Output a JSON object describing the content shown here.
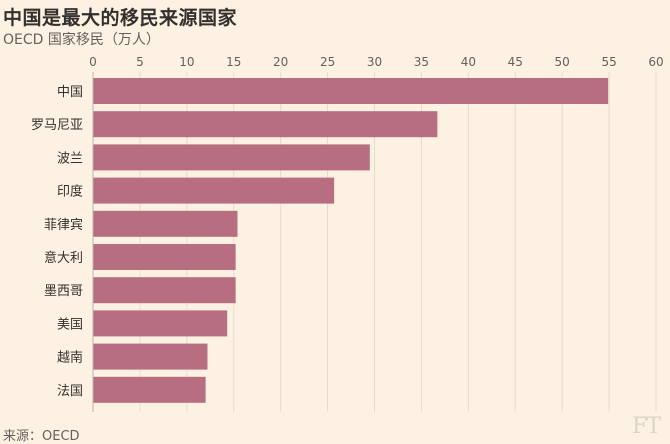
{
  "chart_data": {
    "type": "bar",
    "orientation": "horizontal",
    "title": "中国是最大的移民来源国家",
    "subtitle": "OECD 国家移民（万人）",
    "source": "来源：OECD",
    "categories": [
      "中国",
      "罗马尼亚",
      "波兰",
      "印度",
      "菲律宾",
      "意大利",
      "墨西哥",
      "美国",
      "越南",
      "法国"
    ],
    "values": [
      54.9,
      36.7,
      29.5,
      25.7,
      15.4,
      15.2,
      15.2,
      14.3,
      12.2,
      12.0
    ],
    "xlim": [
      0,
      60
    ],
    "xticks": [
      "0",
      "5",
      "10",
      "15",
      "20",
      "25",
      "30",
      "35",
      "40",
      "45",
      "50",
      "55",
      "60"
    ],
    "grid": true,
    "bar_color": "#b76e80",
    "grid_color": "#e6dacd"
  },
  "brand": "FT"
}
